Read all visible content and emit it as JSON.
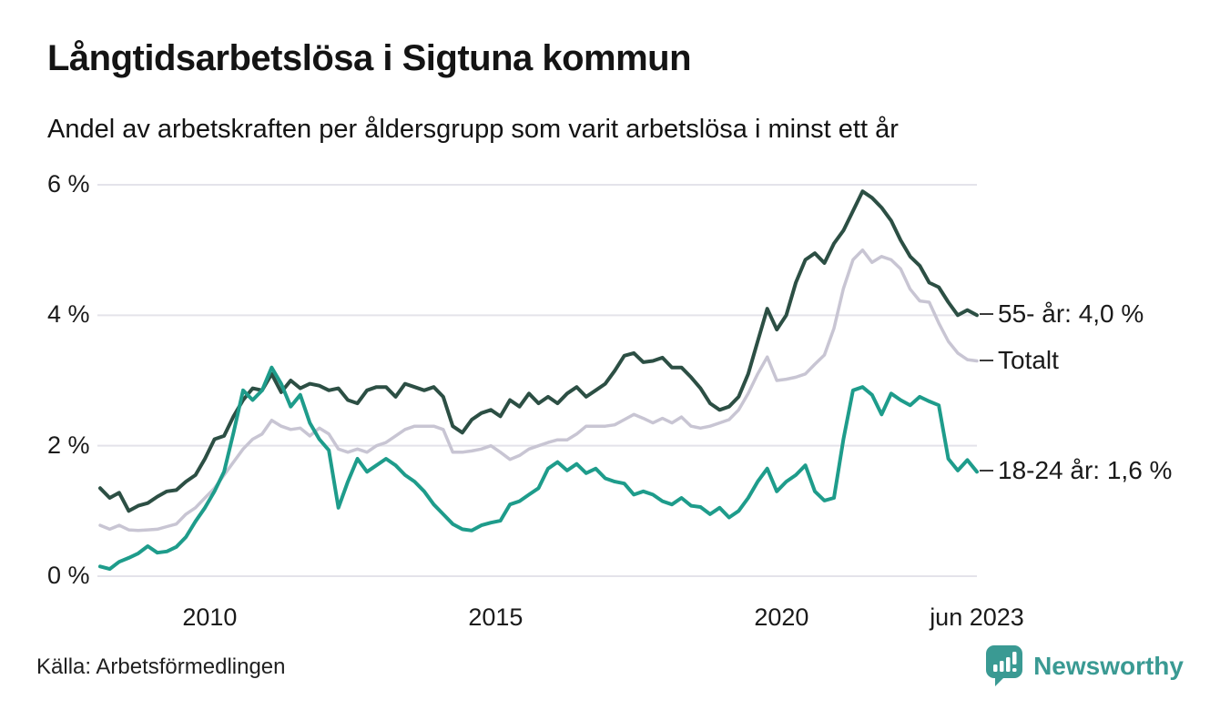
{
  "title": "Långtidsarbetslösa i Sigtuna kommun",
  "subtitle": "Andel av arbetskraften per åldersgrupp som varit arbetslösa i minst ett år",
  "source": "Källa: Arbetsförmedlingen",
  "branding": {
    "name": "Newsworthy",
    "icon": "newsworthy-chart-bubble-icon",
    "color": "#3a9a93"
  },
  "colors": {
    "series_55": "#2c4f44",
    "series_totalt": "#c8c5d3",
    "series_18_24": "#1e9c8b",
    "grid": "#e4e3ea",
    "text": "#1a1a1a"
  },
  "chart_data": {
    "type": "line",
    "title": "Långtidsarbetslösa i Sigtuna kommun",
    "subtitle": "Andel av arbetskraften per åldersgrupp som varit arbetslösa i minst ett år",
    "unit": "% av arbetskraften",
    "grid": "horizontal",
    "legend_position": "right-edge-annotations",
    "x_start": 2008.083,
    "x_step": 0.16667,
    "x_axis": {
      "range": [
        2008.083,
        2023.417
      ],
      "ticks": [
        {
          "label": "2010",
          "t": 2010.0
        },
        {
          "label": "2015",
          "t": 2015.0
        },
        {
          "label": "2020",
          "t": 2020.0
        },
        {
          "label": "jun 2023",
          "t": 2023.417
        }
      ]
    },
    "y_axis": {
      "range": [
        0,
        6
      ],
      "ticks": [
        {
          "label": "6 %",
          "value": 6
        },
        {
          "label": "4 %",
          "value": 4
        },
        {
          "label": "2 %",
          "value": 2
        },
        {
          "label": "0 %",
          "value": 0
        }
      ]
    },
    "series": [
      {
        "name": "55- år",
        "label": "55- år: 4,0 %",
        "color": "#2c4f44",
        "stroke_width": 4,
        "values": [
          1.35,
          1.2,
          1.28,
          1.0,
          1.08,
          1.12,
          1.22,
          1.3,
          1.32,
          1.45,
          1.55,
          1.8,
          2.1,
          2.15,
          2.45,
          2.7,
          2.88,
          2.85,
          3.1,
          2.82,
          3.0,
          2.88,
          2.95,
          2.92,
          2.85,
          2.88,
          2.7,
          2.65,
          2.85,
          2.9,
          2.9,
          2.75,
          2.95,
          2.9,
          2.85,
          2.9,
          2.75,
          2.3,
          2.2,
          2.4,
          2.5,
          2.55,
          2.45,
          2.7,
          2.6,
          2.8,
          2.65,
          2.75,
          2.65,
          2.8,
          2.9,
          2.75,
          2.85,
          2.95,
          3.15,
          3.38,
          3.42,
          3.28,
          3.3,
          3.35,
          3.2,
          3.2,
          3.05,
          2.88,
          2.65,
          2.55,
          2.6,
          2.75,
          3.1,
          3.6,
          4.1,
          3.78,
          4.0,
          4.5,
          4.85,
          4.95,
          4.8,
          5.1,
          5.3,
          5.6,
          5.9,
          5.8,
          5.65,
          5.45,
          5.15,
          4.9,
          4.76,
          4.5,
          4.43,
          4.2,
          4.0,
          4.08,
          4.0
        ]
      },
      {
        "name": "Totalt",
        "label": "Totalt",
        "color": "#c8c5d3",
        "stroke_width": 3.5,
        "values": [
          0.78,
          0.72,
          0.78,
          0.71,
          0.7,
          0.71,
          0.72,
          0.76,
          0.8,
          0.95,
          1.05,
          1.2,
          1.35,
          1.55,
          1.75,
          1.95,
          2.1,
          2.18,
          2.39,
          2.3,
          2.25,
          2.27,
          2.15,
          2.27,
          2.18,
          1.95,
          1.9,
          1.95,
          1.9,
          2.0,
          2.05,
          2.15,
          2.25,
          2.3,
          2.3,
          2.3,
          2.25,
          1.9,
          1.9,
          1.92,
          1.95,
          2.0,
          1.9,
          1.79,
          1.85,
          1.95,
          2.0,
          2.05,
          2.09,
          2.09,
          2.18,
          2.3,
          2.3,
          2.3,
          2.32,
          2.4,
          2.48,
          2.42,
          2.35,
          2.42,
          2.35,
          2.44,
          2.3,
          2.27,
          2.3,
          2.35,
          2.4,
          2.55,
          2.8,
          3.1,
          3.36,
          3.0,
          3.02,
          3.05,
          3.1,
          3.25,
          3.39,
          3.8,
          4.41,
          4.85,
          5.0,
          4.81,
          4.9,
          4.85,
          4.71,
          4.4,
          4.22,
          4.2,
          3.88,
          3.6,
          3.42,
          3.32,
          3.3
        ]
      },
      {
        "name": "18-24 år",
        "label": "18-24 år: 1,6 %",
        "color": "#1e9c8b",
        "stroke_width": 4,
        "values": [
          0.15,
          0.11,
          0.22,
          0.28,
          0.35,
          0.46,
          0.36,
          0.38,
          0.45,
          0.6,
          0.84,
          1.05,
          1.3,
          1.6,
          2.2,
          2.85,
          2.7,
          2.85,
          3.2,
          2.95,
          2.6,
          2.78,
          2.35,
          2.1,
          1.93,
          1.05,
          1.45,
          1.8,
          1.6,
          1.7,
          1.8,
          1.7,
          1.55,
          1.45,
          1.3,
          1.1,
          0.95,
          0.8,
          0.72,
          0.7,
          0.78,
          0.82,
          0.85,
          1.1,
          1.15,
          1.25,
          1.35,
          1.65,
          1.75,
          1.62,
          1.72,
          1.58,
          1.65,
          1.5,
          1.45,
          1.42,
          1.25,
          1.3,
          1.25,
          1.15,
          1.1,
          1.2,
          1.08,
          1.06,
          0.95,
          1.05,
          0.9,
          1.0,
          1.2,
          1.45,
          1.65,
          1.3,
          1.45,
          1.55,
          1.7,
          1.3,
          1.16,
          1.2,
          2.1,
          2.85,
          2.9,
          2.78,
          2.48,
          2.8,
          2.7,
          2.62,
          2.75,
          2.68,
          2.62,
          1.8,
          1.62,
          1.78,
          1.6
        ]
      }
    ]
  }
}
